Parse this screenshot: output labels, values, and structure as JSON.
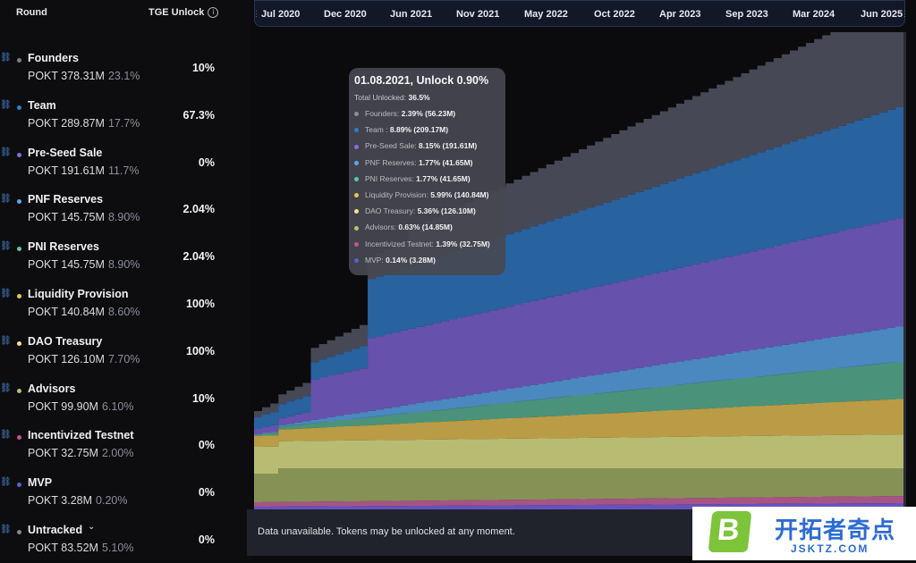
{
  "header": {
    "round_label": "Round",
    "tge_label": "TGE Unlock",
    "info_icon": "info-icon"
  },
  "rounds": [
    {
      "name": "Founders",
      "amount": "POKT 378.31M",
      "percent": "23.1%",
      "tge": "10%",
      "color": "#7a7d8c"
    },
    {
      "name": "Team",
      "amount": "POKT 289.87M",
      "percent": "17.7%",
      "tge": "67.3%",
      "color": "#2f7fd0"
    },
    {
      "name": "Pre-Seed Sale",
      "amount": "POKT 191.61M",
      "percent": "11.7%",
      "tge": "0%",
      "color": "#8c6ad8"
    },
    {
      "name": "PNF Reserves",
      "amount": "POKT 145.75M",
      "percent": "8.90%",
      "tge": "2.04%",
      "color": "#5fa8e8"
    },
    {
      "name": "PNI Reserves",
      "amount": "POKT 145.75M",
      "percent": "8.90%",
      "tge": "2.04%",
      "color": "#5cc9a8"
    },
    {
      "name": "Liquidity Provision",
      "amount": "POKT 140.84M",
      "percent": "8.60%",
      "tge": "100%",
      "color": "#e8c84a"
    },
    {
      "name": "DAO Treasury",
      "amount": "POKT 126.10M",
      "percent": "7.70%",
      "tge": "100%",
      "color": "#f0e48a"
    },
    {
      "name": "Advisors",
      "amount": "POKT 99.90M",
      "percent": "6.10%",
      "tge": "10%",
      "color": "#b5c46a"
    },
    {
      "name": "Incentivized Testnet",
      "amount": "POKT 32.75M",
      "percent": "2.00%",
      "tge": "0%",
      "color": "#c0559a"
    },
    {
      "name": "MVP",
      "amount": "POKT 3.28M",
      "percent": "0.20%",
      "tge": "0%",
      "color": "#5a5fd0"
    },
    {
      "name": "Untracked",
      "amount": "POKT 83.52M",
      "percent": "5.10%",
      "tge": "0%",
      "color": "#888888"
    }
  ],
  "timeline": {
    "labels": [
      "Jul 2020",
      "Dec 2020",
      "Jun 2021",
      "Nov 2021",
      "May 2022",
      "Oct 2022",
      "Apr 2023",
      "Sep 2023",
      "Mar 2024",
      "Jun 2025"
    ]
  },
  "tooltip": {
    "title": "01.08.2021, Unlock 0.90%",
    "total_label": "Total Unlocked:",
    "total_value": "36.5%",
    "items": [
      {
        "label": "Founders:",
        "value": "2.39% (56.23M)",
        "color": "#8a8d9c"
      },
      {
        "label": "Team :",
        "value": "8.89% (209.17M)",
        "color": "#2f7fd0"
      },
      {
        "label": "Pre-Seed Sale:",
        "value": "8.15% (191.61M)",
        "color": "#8c6ad8"
      },
      {
        "label": "PNF Reserves:",
        "value": "1.77% (41.65M)",
        "color": "#5fa8e8"
      },
      {
        "label": "PNI Reserves:",
        "value": "1.77% (41.65M)",
        "color": "#5cc9a8"
      },
      {
        "label": "Liquidity Provision:",
        "value": "5.99% (140.84M)",
        "color": "#e8c84a"
      },
      {
        "label": "DAO Treasury:",
        "value": "5.36% (126.10M)",
        "color": "#f0e48a"
      },
      {
        "label": "Advisors:",
        "value": "0.63% (14.85M)",
        "color": "#b5c46a"
      },
      {
        "label": "Incentivized Testnet:",
        "value": "1.39% (32.75M)",
        "color": "#c0559a"
      },
      {
        "label": "MVP:",
        "value": "0.14% (3.28M)",
        "color": "#5a5fd0"
      }
    ]
  },
  "banner": {
    "text": "Data unavailable. Tokens may be unlocked at any moment."
  },
  "watermark": {
    "letter": "B",
    "text": "开拓者奇点",
    "url": "JSKTZ.COM"
  },
  "chart_data": {
    "type": "area",
    "stacked": true,
    "unit": "% of supply",
    "series": [
      {
        "name": "MVP",
        "color": "#6a56c9"
      },
      {
        "name": "Incentivized Testnet",
        "color": "#b0588c"
      },
      {
        "name": "Advisors",
        "color": "#8d9a5a"
      },
      {
        "name": "DAO Treasury",
        "color": "#c2c679"
      },
      {
        "name": "Liquidity Provision",
        "color": "#c4a44a"
      },
      {
        "name": "PNI Reserves",
        "color": "#4f9a82"
      },
      {
        "name": "PNF Reserves",
        "color": "#4f8fc9"
      },
      {
        "name": "Pre-Seed Sale",
        "color": "#6c55b6"
      },
      {
        "name": "Team",
        "color": "#2a67a8"
      },
      {
        "name": "Founders",
        "color": "#4a4c5a"
      }
    ]
  }
}
